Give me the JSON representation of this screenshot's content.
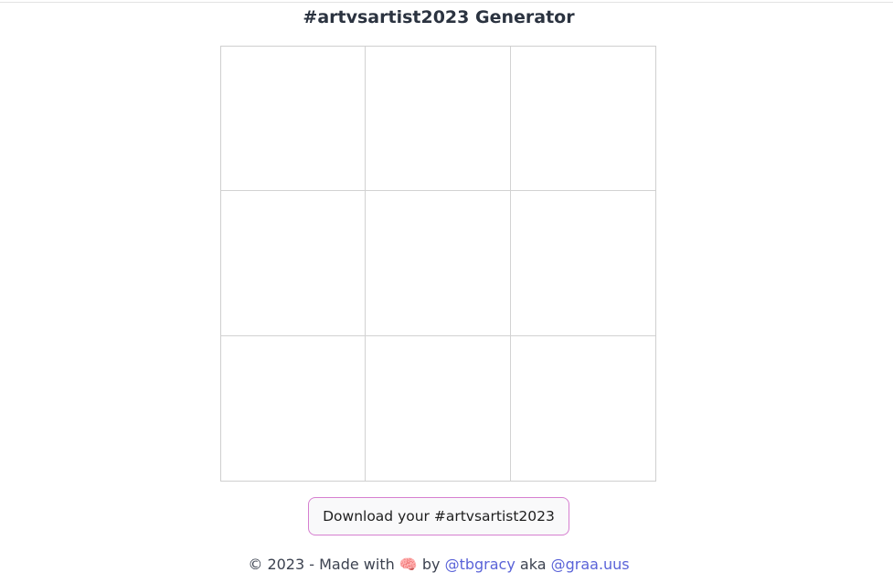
{
  "header": {
    "title": "#artvsartist2023 Generator"
  },
  "grid": {
    "rows": 3,
    "cols": 3
  },
  "actions": {
    "download_label": "Download your #artvsartist2023"
  },
  "footer": {
    "prefix": "© 2023 - Made with",
    "icon_glyph": "🧠",
    "icon_name": "brain-icon",
    "by": "by",
    "link1": "@tbgracy",
    "aka": "aka",
    "link2": "@graa.uus"
  },
  "colors": {
    "button_border": "#d67fd0",
    "link": "#5a63d8",
    "title": "#2b3340"
  }
}
